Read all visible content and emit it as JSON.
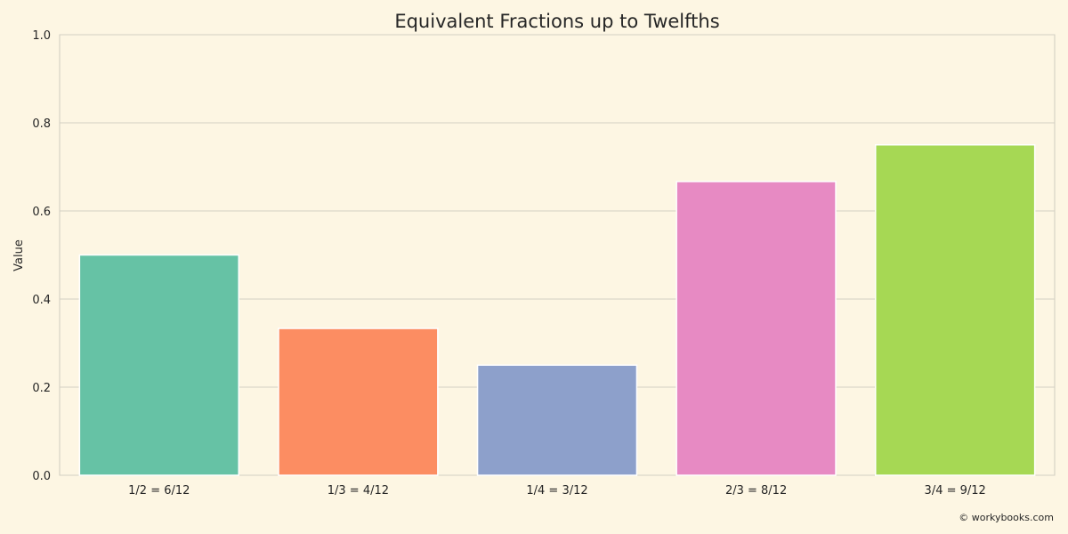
{
  "chart_data": {
    "type": "bar",
    "title": "Equivalent Fractions up to Twelfths",
    "xlabel": "",
    "ylabel": "Value",
    "categories": [
      "1/2 = 6/12",
      "1/3 = 4/12",
      "1/4 = 3/12",
      "2/3 = 8/12",
      "3/4 = 9/12"
    ],
    "values": [
      0.5,
      0.3333,
      0.25,
      0.6667,
      0.75
    ],
    "colors": [
      "#66c2a5",
      "#fc8d62",
      "#8da0cb",
      "#e78ac3",
      "#a6d854"
    ],
    "ylim": [
      0,
      1.0
    ],
    "yticks": [
      "0.0",
      "0.2",
      "0.4",
      "0.6",
      "0.8",
      "1.0"
    ],
    "grid": true,
    "legend": "none"
  },
  "footer": {
    "credit": "© workybooks.com"
  }
}
